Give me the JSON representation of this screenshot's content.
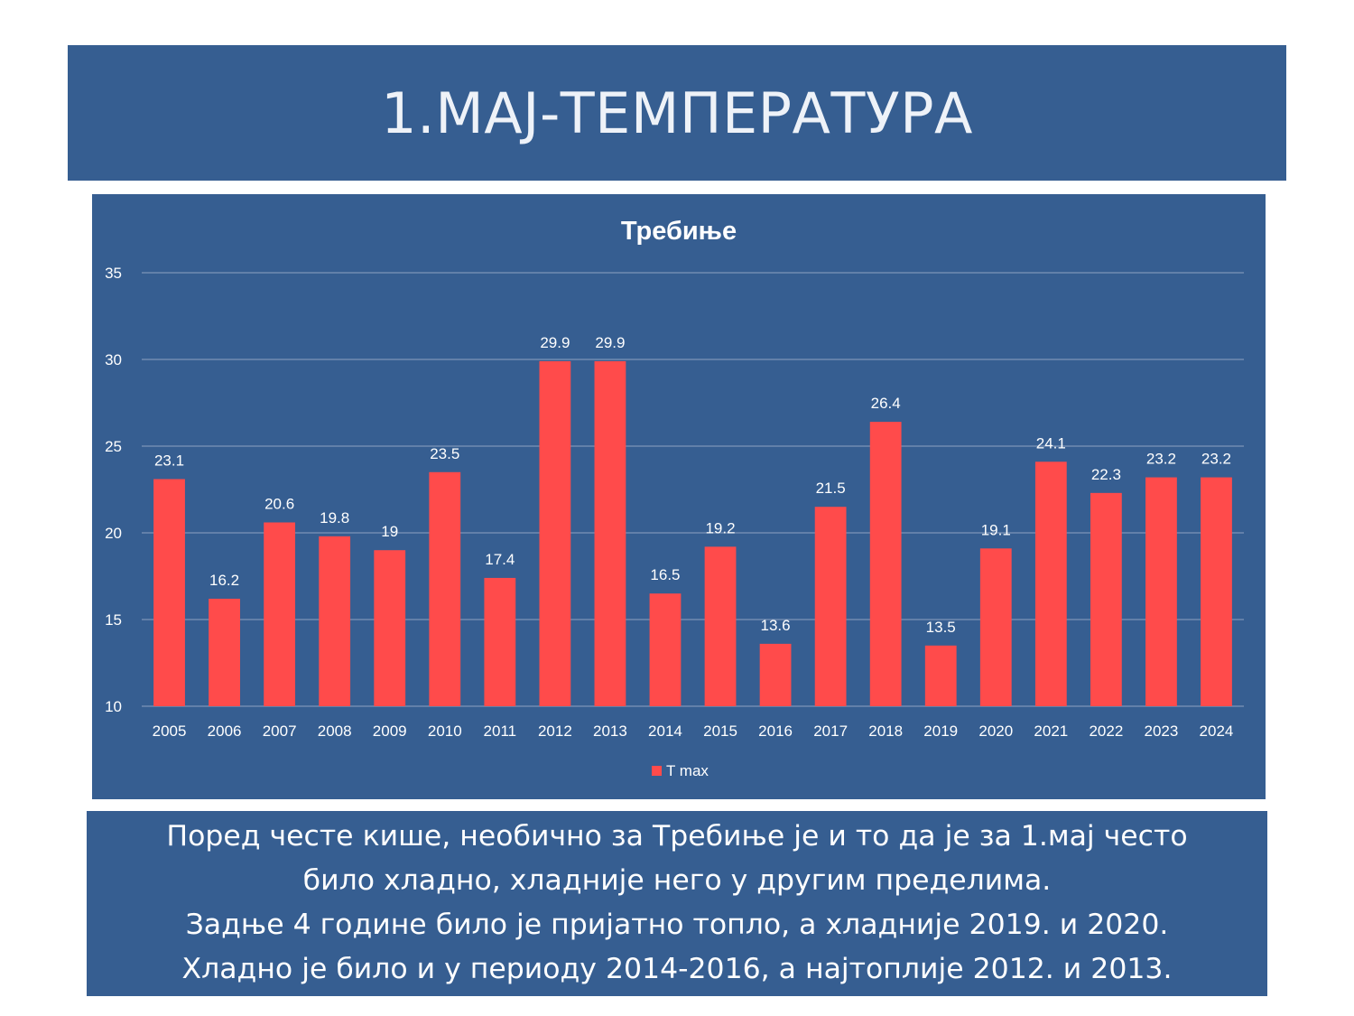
{
  "slide": {
    "title": "1.МАЈ-ТЕМПЕРАТУРА",
    "caption_lines": [
      "Поред честе кише, необично за Требиње је и то да је за 1.мај често",
      "било хладно, хладније него у другим пределима.",
      "Задње 4 године било је пријатно топло, а хладније 2019. и 2020.",
      "Хладно је било и у периоду 2014-2016, а најтоплије 2012. и 2013."
    ]
  },
  "colors": {
    "panel_bg": "#365e91",
    "bar": "#ff4b4b",
    "text": "#ffffff",
    "gridline": "#7e95b8"
  },
  "chart_data": {
    "type": "bar",
    "title": "Требиње",
    "categories": [
      "2005",
      "2006",
      "2007",
      "2008",
      "2009",
      "2010",
      "2011",
      "2012",
      "2013",
      "2014",
      "2015",
      "2016",
      "2017",
      "2018",
      "2019",
      "2020",
      "2021",
      "2022",
      "2023",
      "2024"
    ],
    "series": [
      {
        "name": "T max",
        "values": [
          23.1,
          16.2,
          20.6,
          19.8,
          19,
          23.5,
          17.4,
          29.9,
          29.9,
          16.5,
          19.2,
          13.6,
          21.5,
          26.4,
          13.5,
          19.1,
          24.1,
          22.3,
          23.2,
          23.2
        ]
      }
    ],
    "ylim": [
      10,
      35
    ],
    "yticks": [
      10,
      15,
      20,
      25,
      30,
      35
    ],
    "grid": true,
    "legend_position": "bottom",
    "data_labels": true
  }
}
